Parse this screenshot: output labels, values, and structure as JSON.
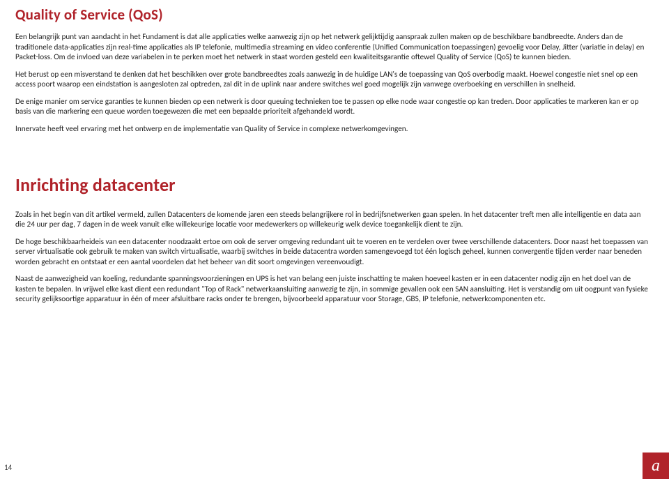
{
  "colors": {
    "accent": "#b0232a",
    "text": "#222222",
    "background": "#ffffff",
    "logo_bg": "#b0232a",
    "logo_fg": "#ffffff"
  },
  "typography": {
    "body_fontsize_pt": 8.5,
    "body_lineheight": 1.3,
    "h1_fontsize_pt": 16,
    "h1_big_fontsize_pt": 20,
    "h1_weight": 600
  },
  "section1": {
    "title": "Quality of Service (QoS)",
    "paragraphs": [
      "Een belangrijk punt van aandacht in het Fundament  is dat alle applicaties welke aanwezig zijn op het netwerk gelijktijdig aanspraak zullen maken op de beschikbare bandbreedte. Anders dan de traditionele data-applicaties zijn real-time applicaties als IP telefonie, multimedia streaming en video conferentie (Unified Communication toepassingen) gevoelig voor Delay, Jitter (variatie in delay) en Packet-loss. Om de invloed van deze variabelen in te perken moet het netwerk in staat worden gesteld een kwaliteitsgarantie oftewel Quality of Service (QoS) te kunnen bieden.",
      "Het berust op een misverstand te denken dat het beschikken over grote bandbreedtes zoals aanwezig in de huidige LAN's de toepassing van QoS overbodig maakt. Hoewel congestie niet snel op een access poort waarop een eindstation is aangesloten zal optreden, zal dit in de uplink naar andere switches wel goed mogelijk zijn vanwege overboeking en verschillen in snelheid.",
      "De enige manier om service garanties te kunnen bieden op een netwerk is door queuing technieken toe te passen op elke node waar congestie op kan treden. Door applicaties te markeren kan er op basis van die markering een queue worden toegewezen die met een bepaalde prioriteit afgehandeld wordt.",
      "Innervate heeft veel ervaring met het ontwerp en de implementatie van Quality of Service in complexe netwerkomgevingen."
    ]
  },
  "section2": {
    "title": "Inrichting datacenter",
    "paragraphs": [
      "Zoals in het begin van dit artikel vermeld, zullen Datacenters de komende jaren een steeds belangrijkere rol in bedrijfsnetwerken gaan spelen. In het datacenter treft men alle intelligentie en data aan die 24 uur per dag, 7 dagen in de week vanuit elke willekeurige locatie voor medewerkers op willekeurig welk device toegankelijk dient te zijn.",
      "De hoge beschikbaarheideis van een datacenter noodzaakt ertoe om ook de server omgeving redundant uit te voeren en te verdelen over twee verschillende datacenters.  Door naast het toepassen van server virtualisatie ook gebruik te maken van switch virtualisatie, waarbij switches in beide datacentra worden samengevoegd tot één logisch geheel, kunnen convergentie tijden verder naar beneden worden gebracht en ontstaat er een aantal voordelen dat het beheer van dit soort omgevingen vereenvoudigt.",
      "Naast de aanwezigheid van koeling, redundante spanningsvoorzieningen en UPS is het van belang een juiste inschatting te maken hoeveel kasten er in een datacenter nodig zijn en het doel van de kasten te bepalen. In vrijwel elke kast dient een redundant \"Top of Rack\" netwerkaansluiting aanwezig te zijn, in sommige gevallen ook een SAN aansluiting. Het is verstandig om uit oogpunt van fysieke security gelijksoortige apparatuur in één of meer afsluitbare racks onder te brengen, bijvoorbeeld apparatuur voor Storage, GBS, IP telefonie, netwerkcomponenten etc."
    ]
  },
  "page_number": "14",
  "logo_glyph": "a"
}
